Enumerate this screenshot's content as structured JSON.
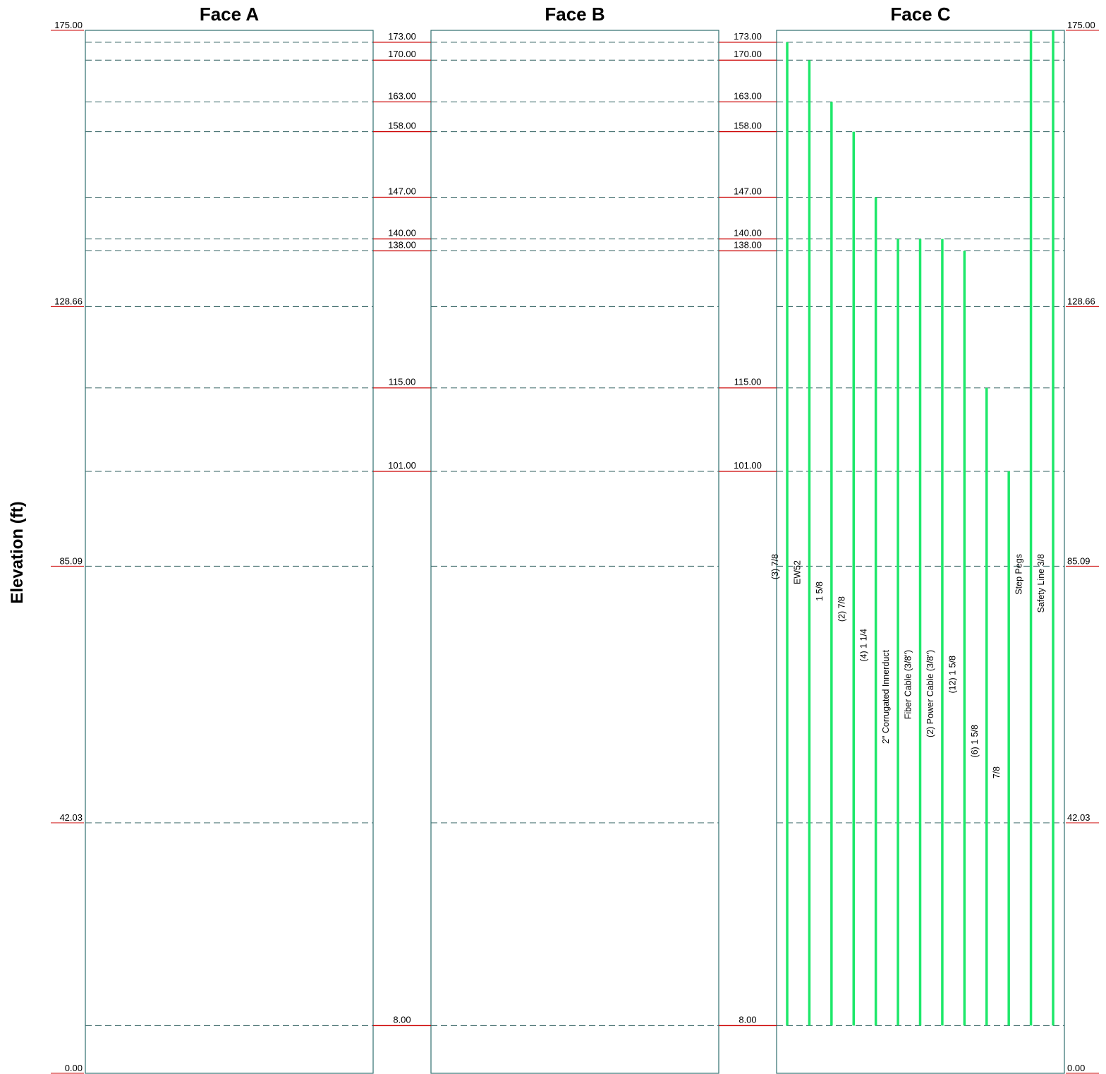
{
  "axis_title": "Elevation (ft)",
  "faces": [
    {
      "id": "A",
      "title": "Face A"
    },
    {
      "id": "B",
      "title": "Face B"
    },
    {
      "id": "C",
      "title": "Face C"
    }
  ],
  "elevation_range": [
    0,
    175
  ],
  "section_elevations": [
    {
      "value": 175,
      "label": "175.00"
    },
    {
      "value": 128.66,
      "label": "128.66"
    },
    {
      "value": 85.09,
      "label": "85.09"
    },
    {
      "value": 42.03,
      "label": "42.03"
    },
    {
      "value": 0,
      "label": "0.00"
    }
  ],
  "attachment_elevations": [
    {
      "value": 173,
      "label": "173.00"
    },
    {
      "value": 170,
      "label": "170.00"
    },
    {
      "value": 163,
      "label": "163.00"
    },
    {
      "value": 158,
      "label": "158.00"
    },
    {
      "value": 147,
      "label": "147.00"
    },
    {
      "value": 140,
      "label": "140.00"
    },
    {
      "value": 138,
      "label": "138.00"
    },
    {
      "value": 115,
      "label": "115.00"
    },
    {
      "value": 101,
      "label": "101.00"
    },
    {
      "value": 8,
      "label": "8.00"
    }
  ],
  "face_c_lines": [
    {
      "label": "(3) 7/8",
      "top": 173,
      "bottom": 8
    },
    {
      "label": "EW52",
      "top": 170,
      "bottom": 8
    },
    {
      "label": "1 5/8",
      "top": 163,
      "bottom": 8
    },
    {
      "label": "(2) 7/8",
      "top": 158,
      "bottom": 8
    },
    {
      "label": "(4) 1 1/4",
      "top": 147,
      "bottom": 8
    },
    {
      "label": "2\" Corrugated Innerduct",
      "top": 140,
      "bottom": 8
    },
    {
      "label": "Fiber Cable (3/8\")",
      "top": 140,
      "bottom": 8
    },
    {
      "label": "(2) Power Cable (3/8\")",
      "top": 140,
      "bottom": 8
    },
    {
      "label": "(12) 1 5/8",
      "top": 138,
      "bottom": 8
    },
    {
      "label": "(6) 1 5/8",
      "top": 115,
      "bottom": 8
    },
    {
      "label": "7/8",
      "top": 101,
      "bottom": 8
    },
    {
      "label": "Step Pegs",
      "top": 175,
      "bottom": 8
    },
    {
      "label": "Safety Line 3/8",
      "top": 175,
      "bottom": 8
    }
  ],
  "colors": {
    "frame": "#2f6f6f",
    "dashed": "#2f5f5f",
    "marker": "#cc0000",
    "line": "#1ee86a"
  }
}
